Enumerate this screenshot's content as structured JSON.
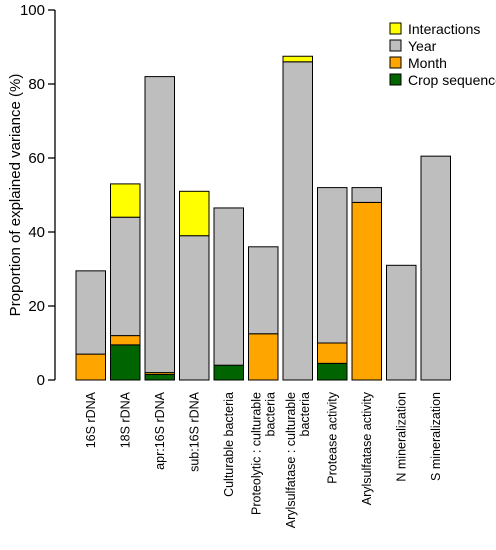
{
  "chart_data": {
    "type": "bar",
    "stacked": true,
    "title": "",
    "xlabel": "",
    "ylabel": "Proportion of explained variance (%)",
    "ylim": [
      0,
      100
    ],
    "yticks": [
      0,
      20,
      40,
      60,
      80,
      100
    ],
    "grid": false,
    "legend_position": "top-right",
    "categories": [
      [
        "16S rDNA"
      ],
      [
        "18S rDNA"
      ],
      [
        "apr:16S rDNA"
      ],
      [
        "sub:16S rDNA"
      ],
      [
        "Culturable bacteria"
      ],
      [
        "Proteolytic : culturable",
        "bacteria"
      ],
      [
        "Arylsulfatase : culturable",
        "bacteria"
      ],
      [
        "Protease activity"
      ],
      [
        "Arylsulfatase activity"
      ],
      [
        "N mineralization"
      ],
      [
        "S mineralization"
      ]
    ],
    "series": [
      {
        "name": "Crop sequence",
        "color": "#006400",
        "values": [
          0,
          9.5,
          1.5,
          0,
          4,
          0,
          0,
          4.5,
          0,
          0,
          0
        ]
      },
      {
        "name": "Month",
        "color": "#FFA500",
        "values": [
          7,
          2.5,
          0.5,
          0,
          0,
          12.5,
          0,
          5.5,
          48,
          0,
          0
        ]
      },
      {
        "name": "Year",
        "color": "#BEBEBE",
        "values": [
          22.5,
          32,
          80,
          39,
          42.5,
          23.5,
          86,
          42,
          4,
          31,
          60.5
        ]
      },
      {
        "name": "Interactions",
        "color": "#FFFF00",
        "values": [
          0,
          9,
          0,
          12,
          0,
          0,
          1.5,
          0,
          0,
          0,
          0
        ]
      }
    ],
    "legend_order": [
      "Interactions",
      "Year",
      "Month",
      "Crop sequence"
    ]
  }
}
